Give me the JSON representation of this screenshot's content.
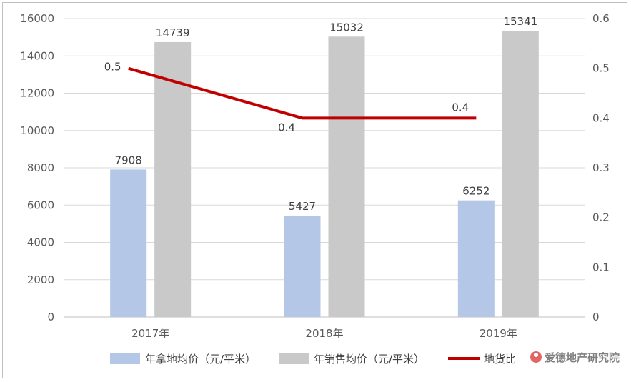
{
  "chart_data": {
    "type": "bar",
    "categories": [
      "2017年",
      "2018年",
      "2019年"
    ],
    "series": [
      {
        "name": "年拿地均价（元/平米）",
        "kind": "bar",
        "axis": "left",
        "color": "#b4c7e7",
        "values": [
          7908,
          5427,
          6252
        ]
      },
      {
        "name": "年销售均价（元/平米）",
        "kind": "bar",
        "axis": "left",
        "color": "#c9c9c9",
        "values": [
          14739,
          15032,
          15341
        ]
      },
      {
        "name": "地货比",
        "kind": "line",
        "axis": "right",
        "color": "#c00000",
        "values": [
          0.5,
          0.4,
          0.4
        ]
      }
    ],
    "left_axis": {
      "min": 0,
      "max": 16000,
      "ticks": [
        "0",
        "2000",
        "4000",
        "6000",
        "8000",
        "10000",
        "12000",
        "14000",
        "16000"
      ]
    },
    "right_axis": {
      "min": 0,
      "max": 0.6,
      "ticks": [
        "0",
        "0.1",
        "0.2",
        "0.3",
        "0.4",
        "0.5",
        "0.6"
      ]
    },
    "grid": true,
    "legend_position": "bottom"
  },
  "watermark": {
    "text": "爱德地产研究院",
    "color": "#e06666"
  }
}
